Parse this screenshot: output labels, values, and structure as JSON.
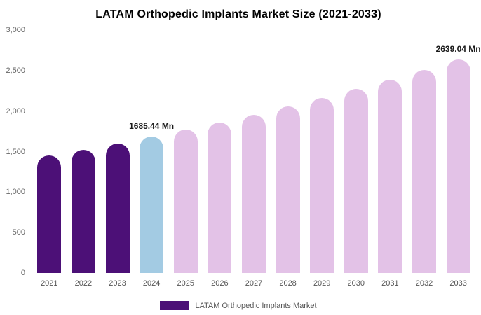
{
  "title": "LATAM Orthopedic Implants Market Size (2021-2033)",
  "legend": {
    "label": "LATAM Orthopedic Implants Market",
    "swatch_color": "#4c1077"
  },
  "colors": {
    "historical": "#4c1077",
    "current": "#a3cbe3",
    "forecast": "#e3c2e7",
    "axis_text": "#666666",
    "label_text": "#1a1a1a"
  },
  "chart_data": {
    "type": "bar",
    "title": "LATAM Orthopedic Implants Market Size (2021-2033)",
    "xlabel": "",
    "ylabel": "",
    "unit": "Mn",
    "grid": false,
    "legend_position": "bottom",
    "ylim": [
      0,
      3000
    ],
    "yticks": [
      0,
      500,
      1000,
      1500,
      2000,
      2500,
      3000
    ],
    "ytick_labels": [
      "0",
      "500",
      "1,000",
      "1,500",
      "2,000",
      "2,500",
      "3,000"
    ],
    "categories": [
      "2021",
      "2022",
      "2023",
      "2024",
      "2025",
      "2026",
      "2027",
      "2028",
      "2029",
      "2030",
      "2031",
      "2032",
      "2033"
    ],
    "values": [
      1451.6,
      1525.7,
      1603.5,
      1685.44,
      1771.5,
      1861.9,
      1956.9,
      2056.8,
      2161.7,
      2272.0,
      2387.9,
      2509.8,
      2639.04
    ],
    "bar_colors": [
      "historical",
      "historical",
      "historical",
      "current",
      "forecast",
      "forecast",
      "forecast",
      "forecast",
      "forecast",
      "forecast",
      "forecast",
      "forecast",
      "forecast"
    ],
    "annotations": [
      {
        "category": "2024",
        "text": "1685.44 Mn"
      },
      {
        "category": "2033",
        "text": "2639.04 Mn"
      }
    ]
  }
}
